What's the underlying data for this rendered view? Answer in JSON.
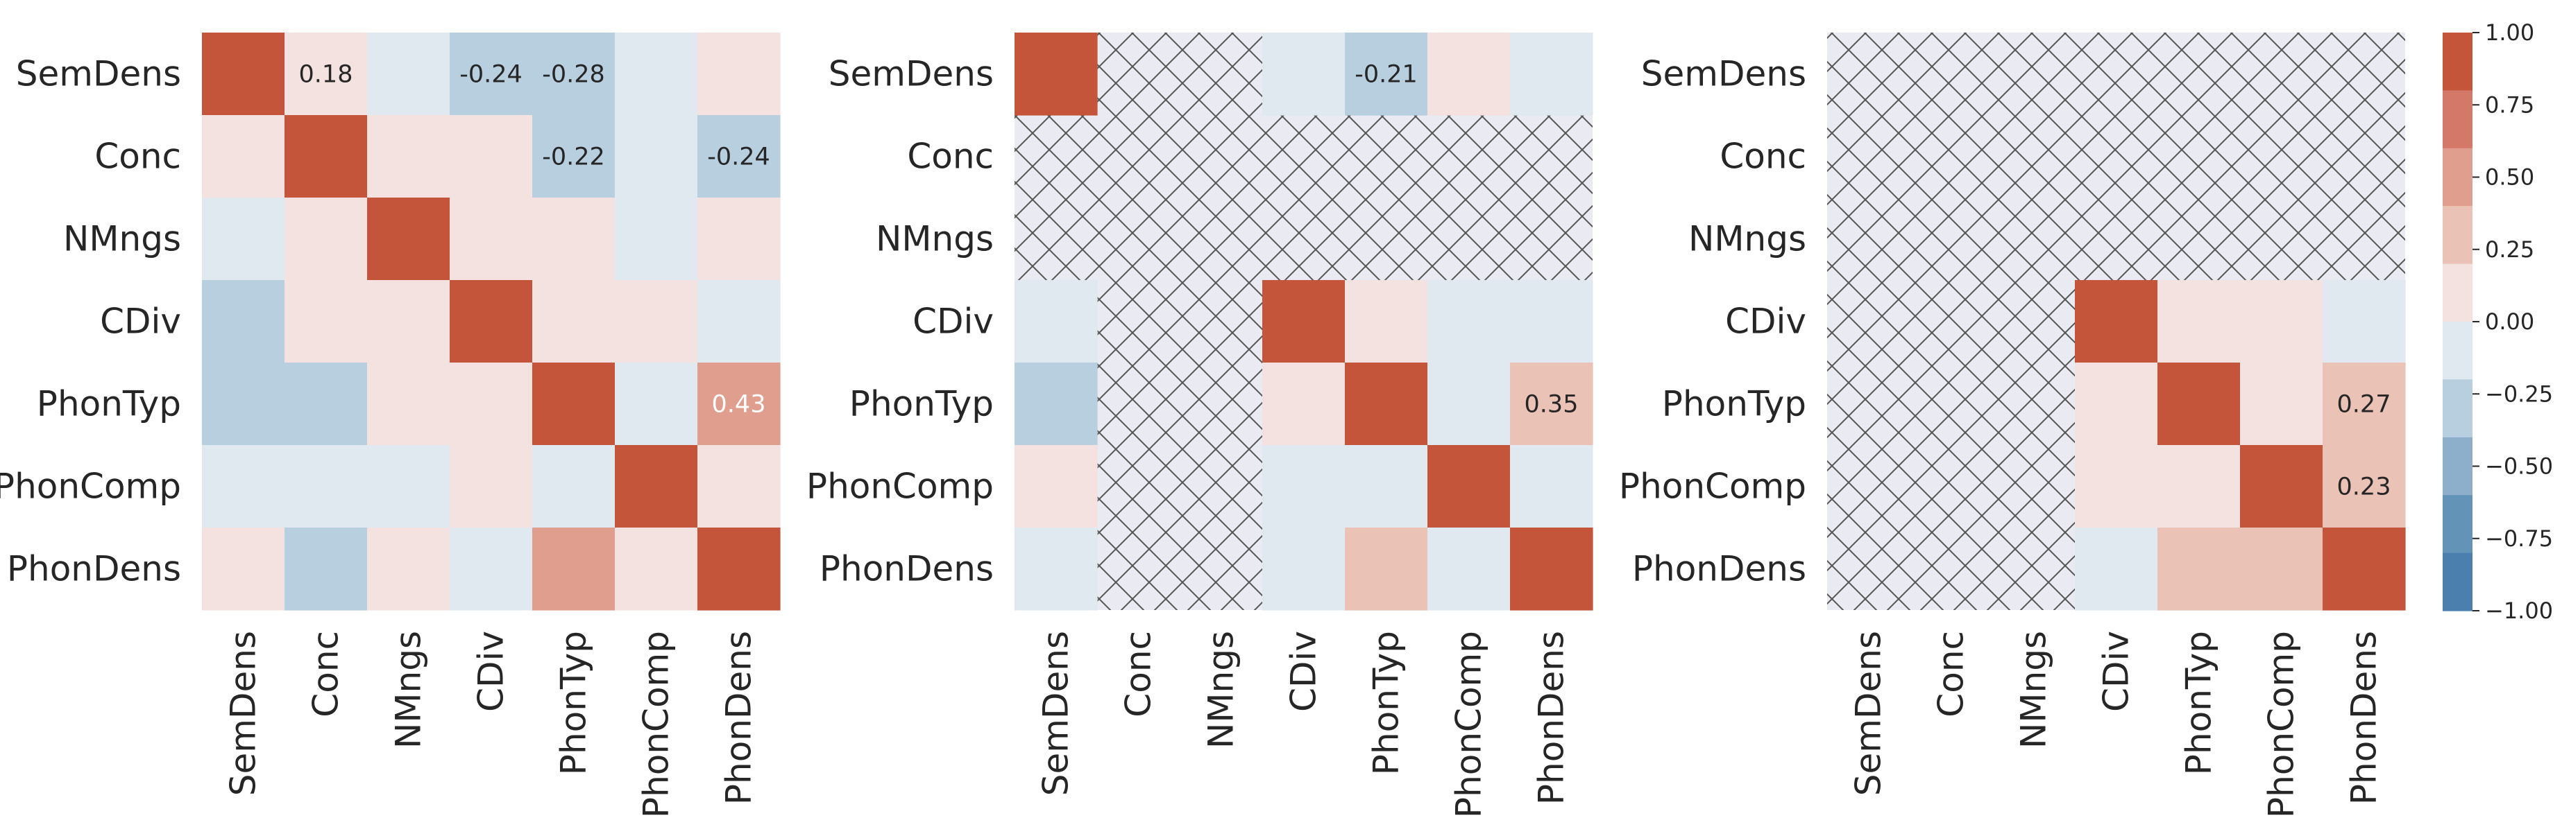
{
  "chart_data": [
    {
      "type": "heatmap",
      "title": "",
      "panel": "left",
      "variables": [
        "SemDens",
        "Conc",
        "NMngs",
        "CDiv",
        "PhonTyp",
        "PhonComp",
        "PhonDens"
      ],
      "mask": [
        false,
        false,
        false,
        false,
        false,
        false,
        false
      ],
      "values": [
        [
          1.0,
          0.18,
          -0.05,
          -0.24,
          -0.28,
          -0.05,
          0.08
        ],
        [
          0.18,
          1.0,
          0.08,
          0.08,
          -0.22,
          -0.05,
          -0.24
        ],
        [
          -0.05,
          0.08,
          1.0,
          0.08,
          0.08,
          -0.05,
          0.08
        ],
        [
          -0.24,
          0.08,
          0.08,
          1.0,
          0.08,
          0.08,
          -0.05
        ],
        [
          -0.28,
          -0.22,
          0.08,
          0.08,
          1.0,
          -0.05,
          0.43
        ],
        [
          -0.05,
          -0.05,
          -0.05,
          0.08,
          -0.05,
          1.0,
          0.08
        ],
        [
          0.08,
          -0.24,
          0.08,
          -0.05,
          0.43,
          0.08,
          1.0
        ]
      ],
      "annotations": [
        {
          "row": 0,
          "col": 1,
          "text": "0.18"
        },
        {
          "row": 0,
          "col": 3,
          "text": "-0.24"
        },
        {
          "row": 0,
          "col": 4,
          "text": "-0.28"
        },
        {
          "row": 1,
          "col": 4,
          "text": "-0.22"
        },
        {
          "row": 1,
          "col": 6,
          "text": "-0.24"
        },
        {
          "row": 4,
          "col": 6,
          "text": "0.43"
        }
      ]
    },
    {
      "type": "heatmap",
      "title": "",
      "panel": "middle",
      "variables": [
        "SemDens",
        "Conc",
        "NMngs",
        "CDiv",
        "PhonTyp",
        "PhonComp",
        "PhonDens"
      ],
      "mask": [
        false,
        true,
        true,
        false,
        false,
        false,
        false
      ],
      "values": [
        [
          1.0,
          null,
          null,
          -0.05,
          -0.21,
          0.08,
          -0.05
        ],
        [
          null,
          null,
          null,
          null,
          null,
          null,
          null
        ],
        [
          null,
          null,
          null,
          null,
          null,
          null,
          null
        ],
        [
          -0.05,
          null,
          null,
          1.0,
          0.08,
          -0.05,
          -0.05
        ],
        [
          -0.21,
          null,
          null,
          0.08,
          1.0,
          -0.05,
          0.35
        ],
        [
          0.08,
          null,
          null,
          -0.05,
          -0.05,
          1.0,
          -0.05
        ],
        [
          -0.05,
          null,
          null,
          -0.05,
          0.35,
          -0.05,
          1.0
        ]
      ],
      "annotations": [
        {
          "row": 0,
          "col": 4,
          "text": "-0.21"
        },
        {
          "row": 4,
          "col": 6,
          "text": "0.35"
        }
      ]
    },
    {
      "type": "heatmap",
      "title": "",
      "panel": "right",
      "variables": [
        "SemDens",
        "Conc",
        "NMngs",
        "CDiv",
        "PhonTyp",
        "PhonComp",
        "PhonDens"
      ],
      "mask": [
        true,
        true,
        true,
        false,
        false,
        false,
        false
      ],
      "values": [
        [
          null,
          null,
          null,
          null,
          null,
          null,
          null
        ],
        [
          null,
          null,
          null,
          null,
          null,
          null,
          null
        ],
        [
          null,
          null,
          null,
          null,
          null,
          null,
          null
        ],
        [
          null,
          null,
          null,
          1.0,
          0.08,
          0.08,
          -0.05
        ],
        [
          null,
          null,
          null,
          0.08,
          1.0,
          0.08,
          0.27
        ],
        [
          null,
          null,
          null,
          0.08,
          0.08,
          1.0,
          0.23
        ],
        [
          null,
          null,
          null,
          -0.05,
          0.27,
          0.23,
          1.0
        ]
      ],
      "annotations": [
        {
          "row": 4,
          "col": 6,
          "text": "0.27"
        },
        {
          "row": 5,
          "col": 6,
          "text": "0.23"
        }
      ]
    }
  ],
  "colorbar": {
    "min": -1.0,
    "max": 1.0,
    "ticks": [
      "1.00",
      "0.75",
      "0.50",
      "0.25",
      "0.00",
      "−0.25",
      "−0.50",
      "−0.75",
      "−1.00"
    ],
    "bins_top_to_bottom": [
      "#c4553a",
      "#d4796a",
      "#e09e8f",
      "#ebc3b6",
      "#f3e2df",
      "#e0e8f0",
      "#b8cfe0",
      "#8eafcb",
      "#6493b8",
      "#4a7fae"
    ]
  },
  "colors": {
    "mask_fill": "#eaeaf2",
    "hatch_stroke": "#555555",
    "text_dark": "#262626",
    "text_light": "#ffffff"
  }
}
